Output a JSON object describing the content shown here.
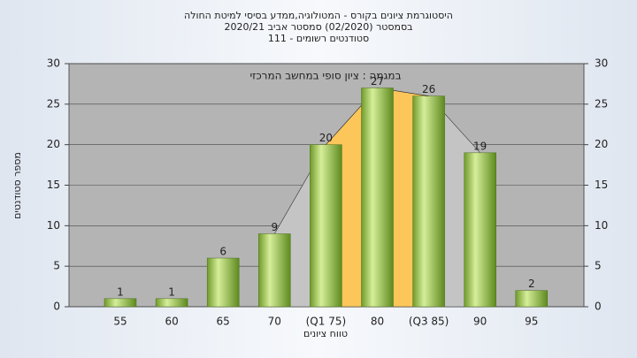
{
  "chart_data": {
    "type": "bar",
    "title": [
      "היסטוגרמת ציונים בקורס - המטולוגיה,ממדע בסיסי למיטת החולה",
      "בסמסטר  (02/2020)  סמסטר אביב 2020/21",
      "סטודנטים רשומים - 111"
    ],
    "annotation": "במגמה : ציון סופי במחשב המרכזי",
    "x_label": "טווח ציונים",
    "y_label": "מספר סטודנטים",
    "categories": [
      "55",
      "60",
      "65",
      "70",
      "(Q1 75)",
      "80",
      "(Q3 85)",
      "90",
      "95"
    ],
    "values": [
      1,
      1,
      6,
      9,
      20,
      27,
      26,
      19,
      2
    ],
    "color": "#9cc24a",
    "ylim": [
      0,
      30
    ],
    "yticks": [
      0,
      5,
      10,
      15,
      20,
      25,
      30
    ],
    "y2lim": [
      0,
      30
    ],
    "y2ticks": [
      0,
      5,
      10,
      15,
      20,
      25,
      30
    ],
    "grid": true
  }
}
